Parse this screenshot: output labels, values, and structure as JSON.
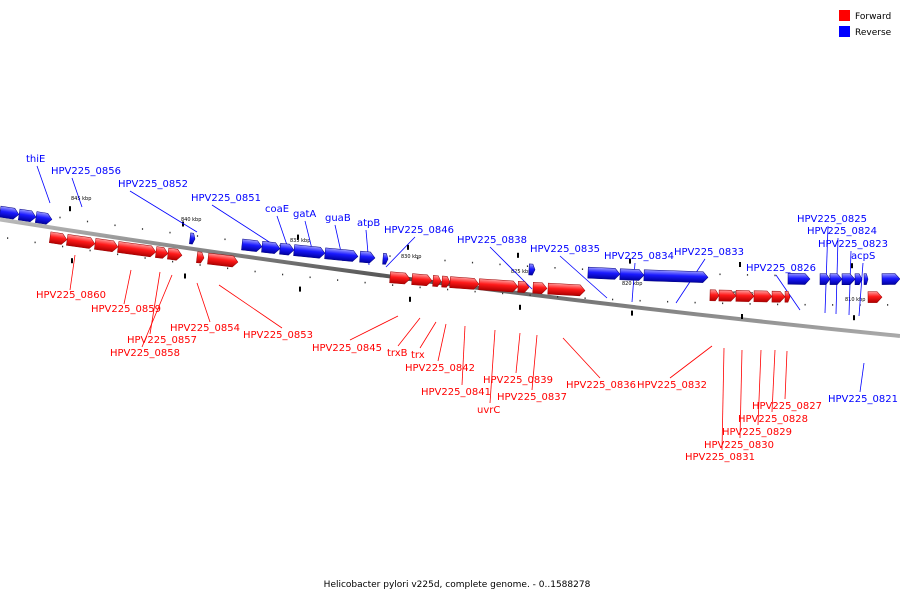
{
  "caption": "Helicobacter pylori v225d, complete genome. - 0..1588278",
  "legend": {
    "forward": {
      "label": "Forward",
      "color": "#ff0000"
    },
    "reverse": {
      "label": "Reverse",
      "color": "#0000ff"
    }
  },
  "scale_labels": [
    "845 kbp",
    "840 kbp",
    "835 kbp",
    "830 kbp",
    "825 kbp",
    "820 kbp",
    "815 kbp",
    "810 kbp"
  ],
  "reverse_genes": [
    "thiE",
    "HPV225_0856",
    "HPV225_0852",
    "HPV225_0851",
    "coaE",
    "gatA",
    "guaB",
    "atpB",
    "HPV225_0846",
    "HPV225_0838",
    "HPV225_0835",
    "HPV225_0834",
    "HPV225_0833",
    "HPV225_0826",
    "HPV225_0825",
    "HPV225_0824",
    "HPV225_0823",
    "acpS",
    "HPV225_0821"
  ],
  "forward_genes": [
    "HPV225_0860",
    "HPV225_0859",
    "HPV225_0857",
    "HPV225_0858",
    "HPV225_0854",
    "HPV225_0853",
    "HPV225_0845",
    "trxB",
    "trx",
    "HPV225_0842",
    "HPV225_0841",
    "uvrC",
    "HPV225_0839",
    "HPV225_0837",
    "HPV225_0836",
    "HPV225_0832",
    "HPV225_0827",
    "HPV225_0828",
    "HPV225_0829",
    "HPV225_0830",
    "HPV225_0831"
  ]
}
